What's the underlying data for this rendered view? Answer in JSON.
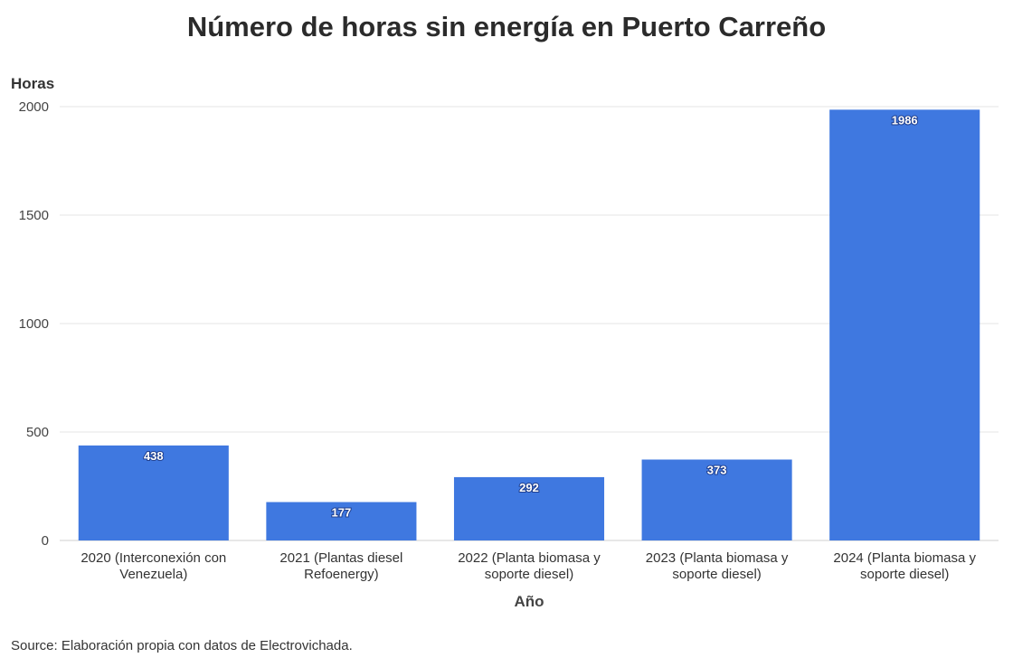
{
  "chart_data": {
    "type": "bar",
    "title": "Número de horas sin energía en Puerto Carreño",
    "ylabel": "Horas",
    "xlabel": "Año",
    "categories": [
      [
        "2020 (Interconexión con",
        "Venezuela)"
      ],
      [
        "2021 (Plantas diesel",
        "Refoenergy)"
      ],
      [
        "2022 (Planta biomasa y",
        "soporte diesel)"
      ],
      [
        "2023 (Planta biomasa y",
        "soporte diesel)"
      ],
      [
        "2024 (Planta biomasa y",
        "soporte diesel)"
      ]
    ],
    "values": [
      438,
      177,
      292,
      373,
      1986
    ],
    "ylim": [
      0,
      2000
    ],
    "yticks": [
      0,
      500,
      1000,
      1500,
      2000
    ],
    "grid": true,
    "bar_color": "#3f78e0",
    "source": "Source: Elaboración propia con datos de Electrovichada."
  }
}
